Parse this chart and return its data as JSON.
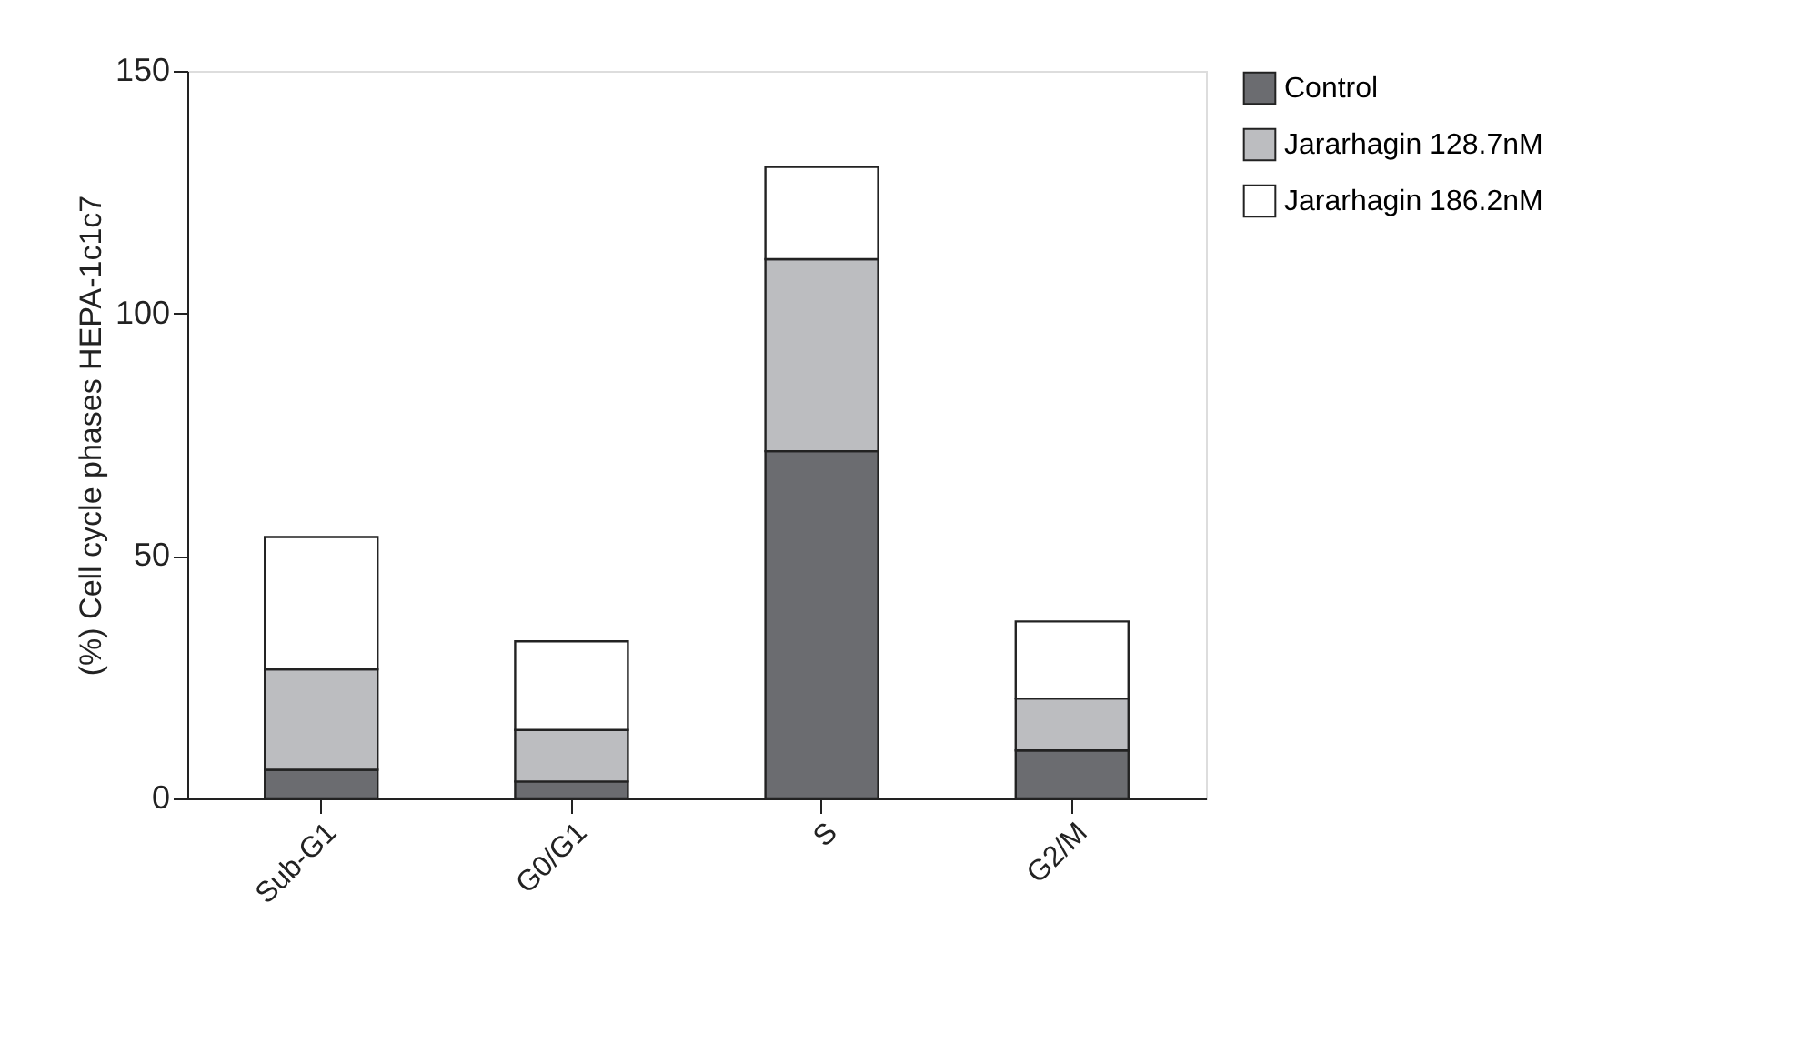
{
  "chart_data": {
    "type": "bar",
    "stacked": true,
    "ylabel": "(%) Cell cycle phases HEPA-1c1c7",
    "categories": [
      "Sub-G1",
      "G0/G1",
      "S",
      "G2/M"
    ],
    "series": [
      {
        "name": "Control",
        "color": "#6b6c70",
        "values": [
          5.9,
          3.5,
          71.6,
          9.9
        ]
      },
      {
        "name": "Jararhagin 128.7nM",
        "color": "#bcbdc0",
        "values": [
          20.7,
          10.6,
          39.6,
          10.7
        ]
      },
      {
        "name": "Jararhagin 186.2nM",
        "color": "#ffffff",
        "values": [
          27.3,
          18.3,
          19.0,
          15.9
        ]
      }
    ],
    "ylim": [
      0,
      150
    ],
    "yticks": [
      0,
      50,
      100,
      150
    ],
    "grid": false,
    "legend": "right"
  }
}
